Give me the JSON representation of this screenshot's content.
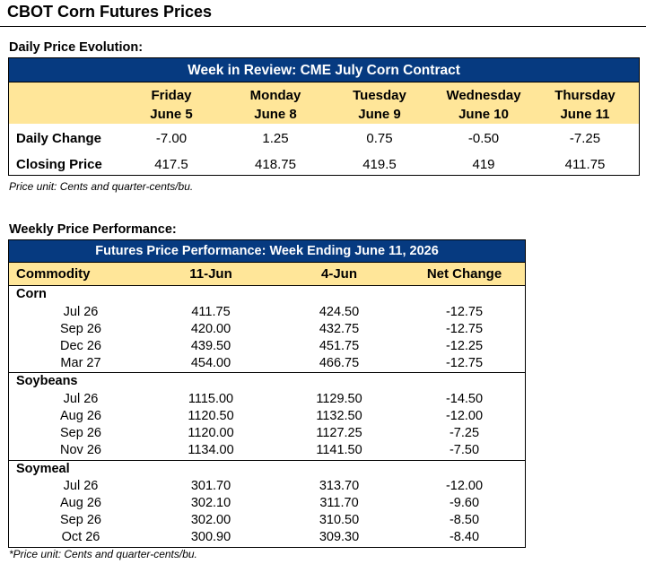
{
  "title": "CBOT Corn Futures Prices",
  "daily": {
    "section_label": "Daily Price Evolution:",
    "banner": "Week in Review: CME July Corn Contract",
    "days": [
      {
        "day": "Friday",
        "date": "June 5"
      },
      {
        "day": "Monday",
        "date": "June 8"
      },
      {
        "day": "Tuesday",
        "date": "June 9"
      },
      {
        "day": "Wednesday",
        "date": "June 10"
      },
      {
        "day": "Thursday",
        "date": "June 11"
      }
    ],
    "rows": [
      {
        "label": "Daily Change",
        "values": [
          "-7.00",
          "1.25",
          "0.75",
          "-0.50",
          "-7.25"
        ]
      },
      {
        "label": "Closing Price",
        "values": [
          "417.5",
          "418.75",
          "419.5",
          "419",
          "411.75"
        ]
      }
    ],
    "note": "Price unit: Cents and quarter-cents/bu."
  },
  "weekly": {
    "section_label": "Weekly Price Performance:",
    "banner": "Futures Price Performance: Week Ending June 11, 2026",
    "headers": [
      "Commodity",
      "11-Jun",
      "4-Jun",
      "Net Change"
    ],
    "groups": [
      {
        "name": "Corn",
        "rows": [
          {
            "contract": "Jul 26",
            "current": "411.75",
            "previous": "424.50",
            "change": "-12.75"
          },
          {
            "contract": "Sep 26",
            "current": "420.00",
            "previous": "432.75",
            "change": "-12.75"
          },
          {
            "contract": "Dec 26",
            "current": "439.50",
            "previous": "451.75",
            "change": "-12.25"
          },
          {
            "contract": "Mar 27",
            "current": "454.00",
            "previous": "466.75",
            "change": "-12.75"
          }
        ]
      },
      {
        "name": "Soybeans",
        "rows": [
          {
            "contract": "Jul 26",
            "current": "1115.00",
            "previous": "1129.50",
            "change": "-14.50"
          },
          {
            "contract": "Aug 26",
            "current": "1120.50",
            "previous": "1132.50",
            "change": "-12.00"
          },
          {
            "contract": "Sep 26",
            "current": "1120.00",
            "previous": "1127.25",
            "change": "-7.25"
          },
          {
            "contract": "Nov 26",
            "current": "1134.00",
            "previous": "1141.50",
            "change": "-7.50"
          }
        ]
      },
      {
        "name": "Soymeal",
        "rows": [
          {
            "contract": "Jul 26",
            "current": "301.70",
            "previous": "313.70",
            "change": "-12.00"
          },
          {
            "contract": "Aug 26",
            "current": "302.10",
            "previous": "311.70",
            "change": "-9.60"
          },
          {
            "contract": "Sep 26",
            "current": "302.00",
            "previous": "310.50",
            "change": "-8.50"
          },
          {
            "contract": "Oct 26",
            "current": "300.90",
            "previous": "309.30",
            "change": "-8.40"
          }
        ]
      }
    ],
    "note": "*Price unit: Cents and quarter-cents/bu."
  },
  "colors": {
    "banner": "#063a80",
    "header_fill": "#ffe699"
  }
}
